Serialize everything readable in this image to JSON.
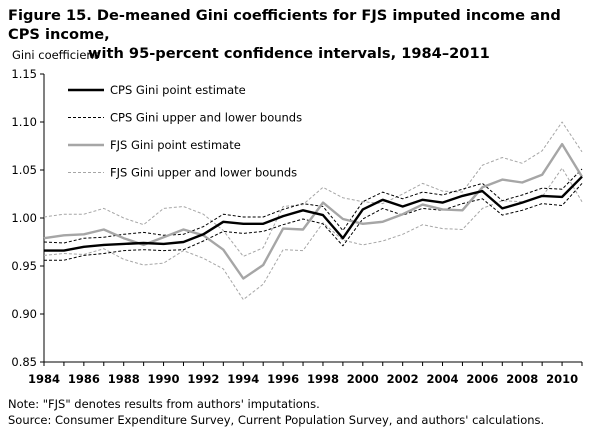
{
  "title": {
    "line1": "Figure 15. De-meaned Gini coefficients for FJS imputed income and CPS income,",
    "line2": "with 95-percent confidence intervals, 1984–2011"
  },
  "notes": {
    "note": "Note: \"FJS\" denotes results from authors' imputations.",
    "source": "Source: Consumer Expenditure Survey, Current Population Survey, and authors' calculations."
  },
  "chart_data": {
    "type": "line",
    "ylabel": "Gini coefficient",
    "xlabel": "",
    "ylim": [
      0.85,
      1.15
    ],
    "yticks": [
      0.85,
      0.9,
      0.95,
      1.0,
      1.05,
      1.1,
      1.15
    ],
    "ytick_labels": [
      "0.85",
      "0.90",
      "0.95",
      "1.00",
      "1.05",
      "1.10",
      "1.15"
    ],
    "xlim": [
      1984,
      2011
    ],
    "xticks": [
      1984,
      1986,
      1988,
      1990,
      1992,
      1994,
      1996,
      1998,
      2000,
      2002,
      2004,
      2006,
      2008,
      2010
    ],
    "grid": false,
    "legend_position": "top-left",
    "x": [
      1984,
      1985,
      1986,
      1987,
      1988,
      1989,
      1990,
      1991,
      1992,
      1993,
      1994,
      1995,
      1996,
      1997,
      1998,
      1999,
      2000,
      2001,
      2002,
      2003,
      2004,
      2005,
      2006,
      2007,
      2008,
      2009,
      2010,
      2011
    ],
    "series": [
      {
        "name": "CPS Gini point estimate",
        "style": "thick-black",
        "values": [
          0.966,
          0.966,
          0.97,
          0.972,
          0.973,
          0.974,
          0.973,
          0.975,
          0.983,
          0.996,
          0.994,
          0.994,
          1.002,
          1.008,
          1.003,
          0.979,
          1.009,
          1.019,
          1.012,
          1.019,
          1.016,
          1.023,
          1.028,
          1.01,
          1.016,
          1.023,
          1.022,
          1.043
        ]
      },
      {
        "name": "CPS Gini upper and lower bounds",
        "style": "dashed-black",
        "values": [
          0.975,
          0.974,
          0.979,
          0.98,
          0.983,
          0.985,
          0.982,
          0.983,
          0.991,
          1.004,
          1.001,
          1.001,
          1.009,
          1.015,
          1.012,
          0.987,
          1.017,
          1.027,
          1.02,
          1.027,
          1.024,
          1.03,
          1.036,
          1.018,
          1.024,
          1.031,
          1.03,
          1.051
        ]
      },
      {
        "name": "",
        "style": "dashed-black",
        "values": [
          0.956,
          0.956,
          0.961,
          0.963,
          0.966,
          0.967,
          0.966,
          0.967,
          0.976,
          0.986,
          0.984,
          0.986,
          0.993,
          0.999,
          0.994,
          0.971,
          0.999,
          1.01,
          1.003,
          1.01,
          1.008,
          1.015,
          1.02,
          1.003,
          1.008,
          1.015,
          1.013,
          1.036
        ]
      },
      {
        "name": "FJS Gini point estimate",
        "style": "thick-gray",
        "values": [
          0.979,
          0.982,
          0.983,
          0.988,
          0.979,
          0.972,
          0.98,
          0.988,
          0.982,
          0.967,
          0.937,
          0.951,
          0.989,
          0.988,
          1.016,
          0.999,
          0.994,
          0.996,
          1.004,
          1.014,
          1.009,
          1.008,
          1.032,
          1.04,
          1.037,
          1.045,
          1.077,
          1.043
        ]
      },
      {
        "name": "FJS Gini upper and lower bounds",
        "style": "dashed-gray",
        "values": [
          1.001,
          1.004,
          1.004,
          1.01,
          1.0,
          0.993,
          1.01,
          1.012,
          1.004,
          0.987,
          0.96,
          0.969,
          1.012,
          1.014,
          1.032,
          1.021,
          1.017,
          1.015,
          1.025,
          1.036,
          1.028,
          1.027,
          1.055,
          1.063,
          1.057,
          1.07,
          1.1,
          1.069
        ]
      },
      {
        "name": "",
        "style": "dashed-gray",
        "values": [
          0.961,
          0.963,
          0.962,
          0.968,
          0.957,
          0.951,
          0.953,
          0.966,
          0.958,
          0.947,
          0.915,
          0.931,
          0.967,
          0.966,
          0.995,
          0.977,
          0.972,
          0.976,
          0.983,
          0.993,
          0.989,
          0.988,
          1.01,
          1.018,
          1.017,
          1.022,
          1.052,
          1.017
        ]
      }
    ],
    "colors": {
      "black": "#000000",
      "gray": "#a6a6a6"
    }
  }
}
